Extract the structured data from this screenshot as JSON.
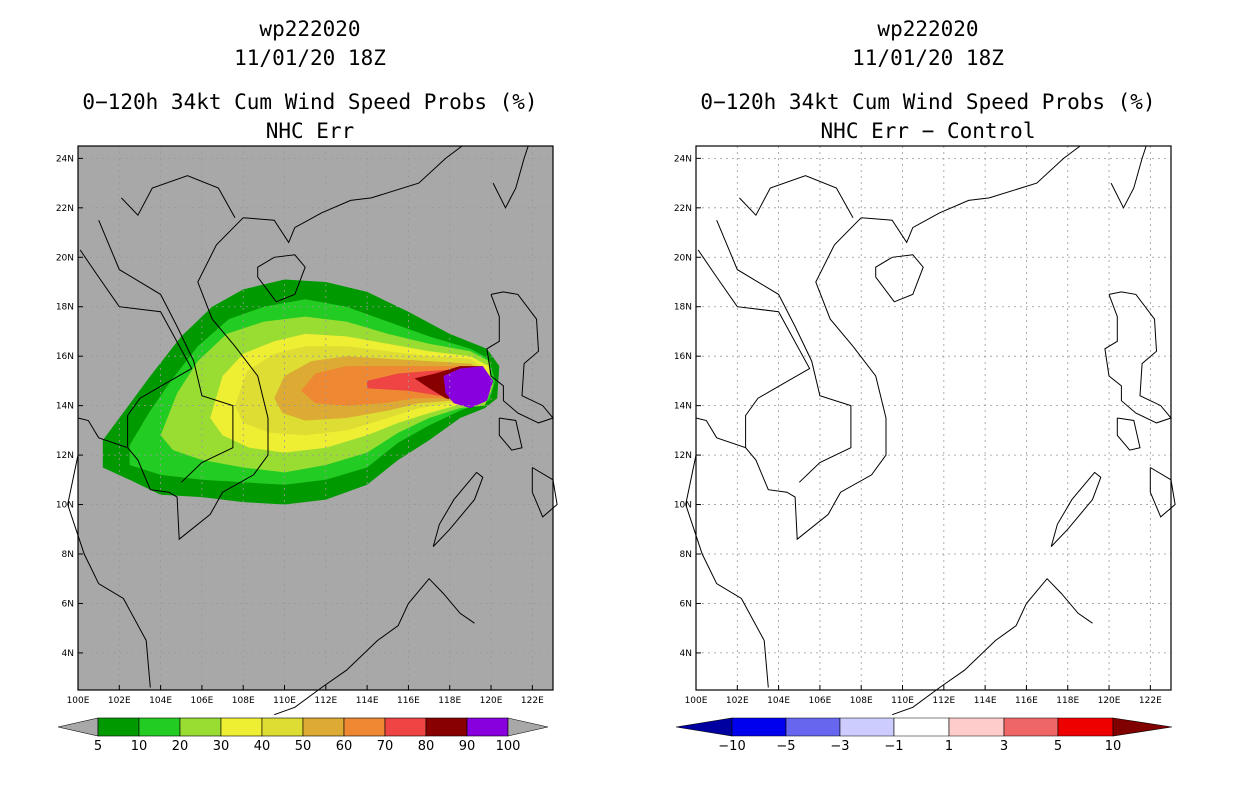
{
  "left_panel": {
    "storm_id": "wp222020",
    "datetime": "11/01/20 18Z",
    "product": "0−120h 34kt Cum Wind Speed Probs (%)",
    "subtitle": "NHC Err",
    "background_color": "#a8a8a8",
    "legend": {
      "labels": [
        "5",
        "10",
        "20",
        "30",
        "40",
        "50",
        "60",
        "70",
        "80",
        "90",
        "100"
      ],
      "colors": [
        "#009900",
        "#22cc22",
        "#99dd33",
        "#eeee33",
        "#dddd33",
        "#ddaa33",
        "#ee8833",
        "#ee4444",
        "#880000",
        "#8800dd"
      ]
    }
  },
  "right_panel": {
    "storm_id": "wp222020",
    "datetime": "11/01/20 18Z",
    "product": "0−120h 34kt Cum Wind Speed Probs (%)",
    "subtitle": "NHC Err − Control",
    "background_color": "#ffffff",
    "legend": {
      "labels": [
        "−10",
        "−5",
        "−3",
        "−1",
        "1",
        "3",
        "5",
        "10"
      ],
      "colors": [
        "#0000a0",
        "#0000ee",
        "#6666ee",
        "#ccccff",
        "#ffffff",
        "#ffcccc",
        "#ee6666",
        "#ee0000",
        "#800000"
      ]
    }
  },
  "axes": {
    "lon_labels": [
      "100E",
      "102E",
      "104E",
      "106E",
      "108E",
      "110E",
      "112E",
      "114E",
      "116E",
      "118E",
      "120E",
      "122E"
    ],
    "lat_labels": [
      "24N",
      "22N",
      "20N",
      "18N",
      "16N",
      "14N",
      "12N",
      "10N",
      "8N",
      "6N",
      "4N"
    ],
    "lon_range": [
      100,
      123
    ],
    "lat_range": [
      2.5,
      24.5
    ]
  }
}
